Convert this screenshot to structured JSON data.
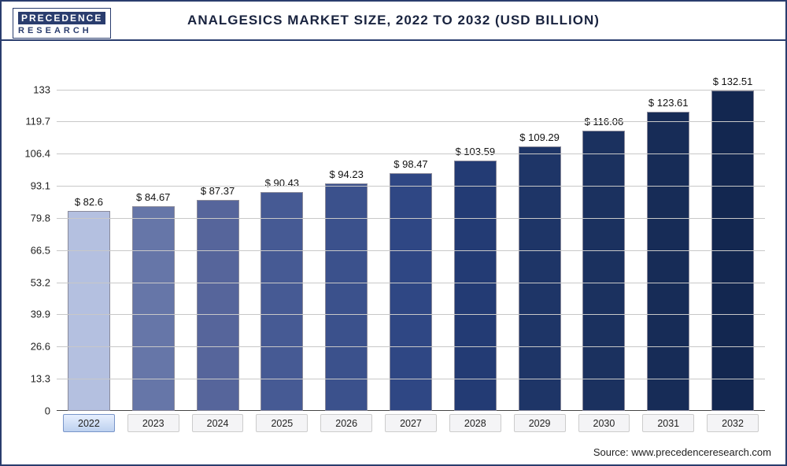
{
  "logo": {
    "line1": "PRECEDENCE",
    "line2": "RESEARCH"
  },
  "title": "ANALGESICS MARKET SIZE, 2022 TO 2032 (USD BILLION)",
  "title_fontsize": 17,
  "source": "Source: www.precedenceresearch.com",
  "chart": {
    "type": "bar",
    "ylim": [
      0,
      140
    ],
    "yticks": [
      0,
      13.3,
      26.6,
      39.9,
      53.2,
      66.5,
      79.8,
      93.1,
      106.4,
      119.7,
      133
    ],
    "grid_color": "#c8c8c8",
    "background_color": "#ffffff",
    "bar_width_pct": 66,
    "categories": [
      "2022",
      "2023",
      "2024",
      "2025",
      "2026",
      "2027",
      "2028",
      "2029",
      "2030",
      "2031",
      "2032"
    ],
    "values": [
      82.6,
      84.67,
      87.37,
      90.43,
      94.23,
      98.47,
      103.59,
      109.29,
      116.06,
      123.61,
      132.51
    ],
    "value_prefix": "$ ",
    "bar_colors": [
      "#b4c0e0",
      "#6676a8",
      "#56659b",
      "#465a94",
      "#3b518c",
      "#2f4784",
      "#233b74",
      "#1e3567",
      "#1b315f",
      "#172c57",
      "#132750"
    ],
    "highlight_index": 0,
    "label_fontsize": 13
  }
}
